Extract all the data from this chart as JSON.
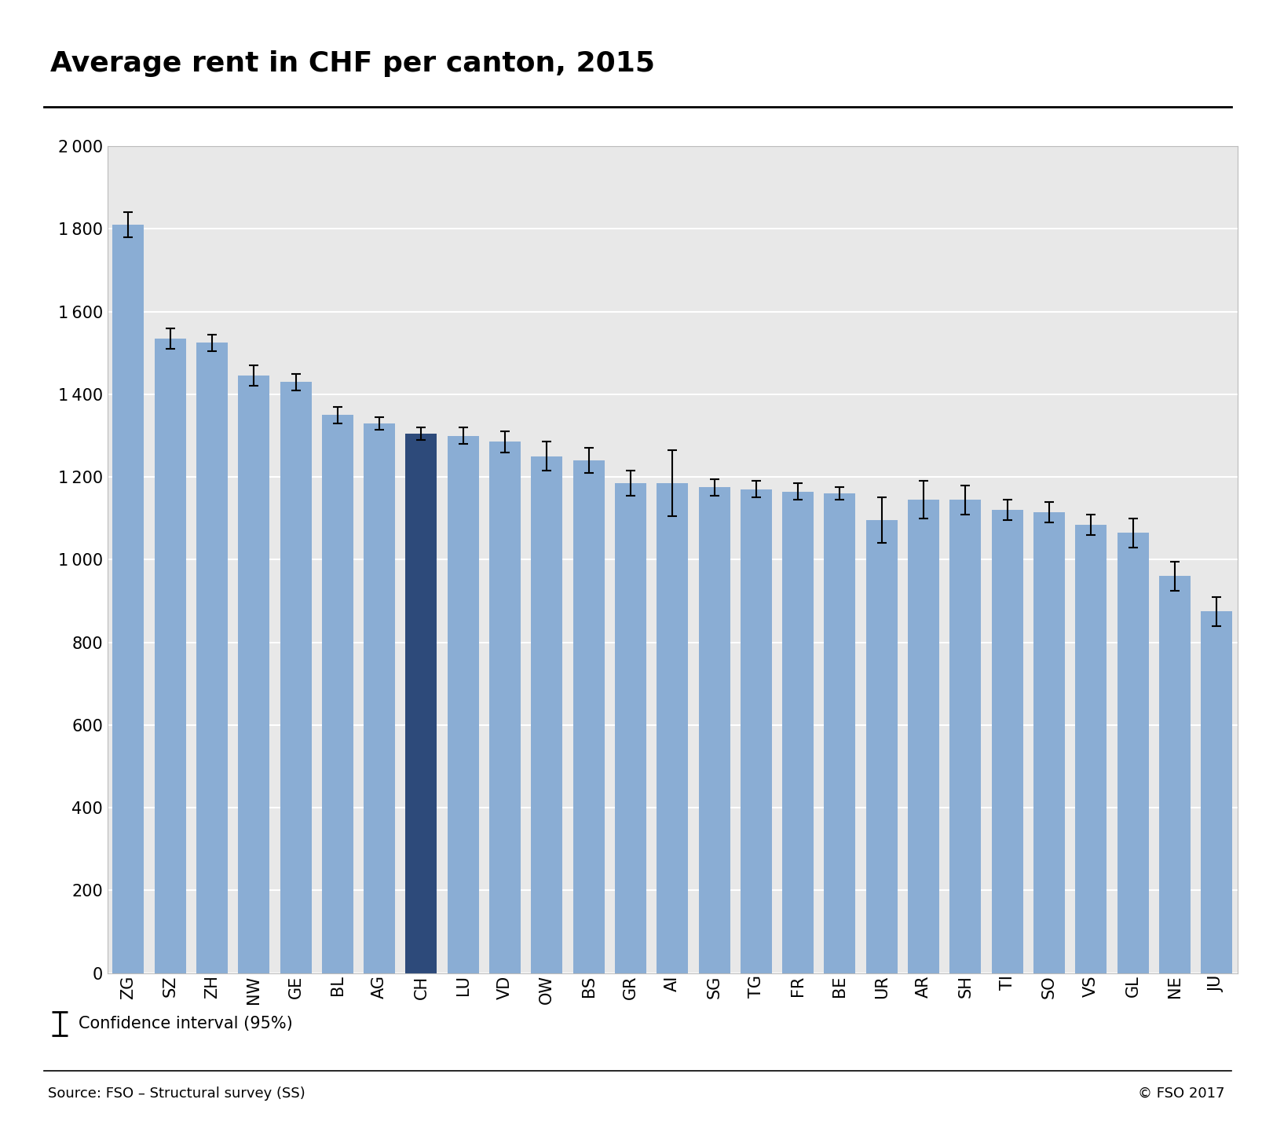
{
  "title": "Average rent in CHF per canton, 2015",
  "categories": [
    "ZG",
    "SZ",
    "ZH",
    "NW",
    "GE",
    "BL",
    "AG",
    "CH",
    "LU",
    "VD",
    "OW",
    "BS",
    "GR",
    "AI",
    "SG",
    "TG",
    "FR",
    "BE",
    "UR",
    "AR",
    "SH",
    "TI",
    "SO",
    "VS",
    "GL",
    "NE",
    "JU"
  ],
  "values": [
    1810,
    1535,
    1525,
    1445,
    1430,
    1350,
    1330,
    1305,
    1300,
    1285,
    1250,
    1240,
    1185,
    1185,
    1175,
    1170,
    1165,
    1160,
    1095,
    1145,
    1145,
    1120,
    1115,
    1085,
    1065,
    960,
    875
  ],
  "errors_low": [
    30,
    25,
    20,
    25,
    20,
    20,
    15,
    15,
    20,
    25,
    35,
    30,
    30,
    80,
    20,
    20,
    20,
    15,
    55,
    45,
    35,
    25,
    25,
    25,
    35,
    35,
    35
  ],
  "errors_high": [
    30,
    25,
    20,
    25,
    20,
    20,
    15,
    15,
    20,
    25,
    35,
    30,
    30,
    80,
    20,
    20,
    20,
    15,
    55,
    45,
    35,
    25,
    25,
    25,
    35,
    35,
    35
  ],
  "bar_color_default": "#8aadd4",
  "bar_color_highlight": "#2d4a7a",
  "highlight_index": 7,
  "ylim": [
    0,
    2000
  ],
  "yticks": [
    0,
    200,
    400,
    600,
    800,
    1000,
    1200,
    1400,
    1600,
    1800,
    2000
  ],
  "ytick_labels": [
    "0",
    "200",
    "400",
    "600",
    "800",
    "1 000",
    "1 200",
    "1 400",
    "1 600",
    "1 800",
    "2 000"
  ],
  "source_text": "Source: FSO – Structural survey (SS)",
  "copyright_text": "© FSO 2017",
  "legend_label": "Confidence interval (95%)",
  "plot_bg_color": "#e8e8e8",
  "title_fontsize": 26,
  "tick_fontsize": 15,
  "source_fontsize": 13
}
